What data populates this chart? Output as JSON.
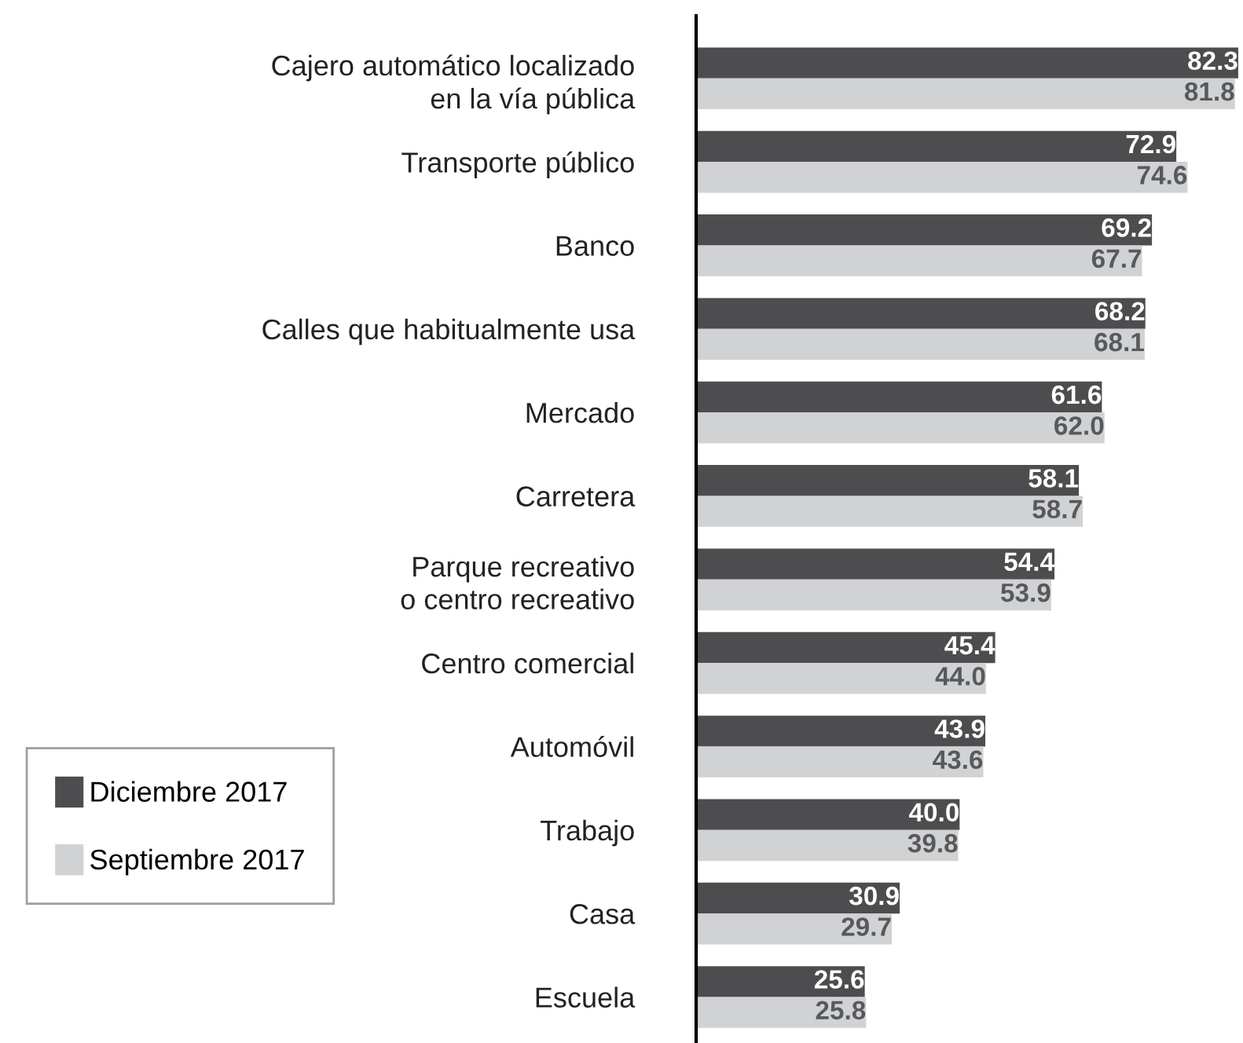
{
  "chart_data": {
    "type": "bar",
    "orientation": "horizontal",
    "categories": [
      "Cajero automático localizado\nen la vía pública",
      "Transporte público",
      "Banco",
      "Calles que habitualmente usa",
      "Mercado",
      "Carretera",
      "Parque recreativo\no centro recreativo",
      "Centro comercial",
      "Automóvil",
      "Trabajo",
      "Casa",
      "Escuela"
    ],
    "series": [
      {
        "name": "Diciembre 2017",
        "color": "#4d4d4f",
        "values": [
          82.3,
          72.9,
          69.2,
          68.2,
          61.6,
          58.1,
          54.4,
          45.4,
          43.9,
          40.0,
          30.9,
          25.6
        ],
        "value_labels": [
          "82.3",
          "72.9",
          "69.2",
          "68.2",
          "61.6",
          "58.1",
          "54.4",
          "45.4",
          "43.9",
          "40.0",
          "30.9",
          "25.6"
        ]
      },
      {
        "name": "Septiembre 2017",
        "color": "#d1d2d4",
        "values": [
          81.8,
          74.6,
          67.7,
          68.1,
          62.0,
          58.7,
          53.9,
          44.0,
          43.6,
          39.8,
          29.7,
          25.8
        ],
        "value_labels": [
          "81.8",
          "74.6",
          "67.7",
          "68.1",
          "62.0",
          "58.7",
          "53.9",
          "44.0",
          "43.6",
          "39.8",
          "29.7",
          "25.8"
        ]
      }
    ],
    "legend": "bottom left"
  }
}
